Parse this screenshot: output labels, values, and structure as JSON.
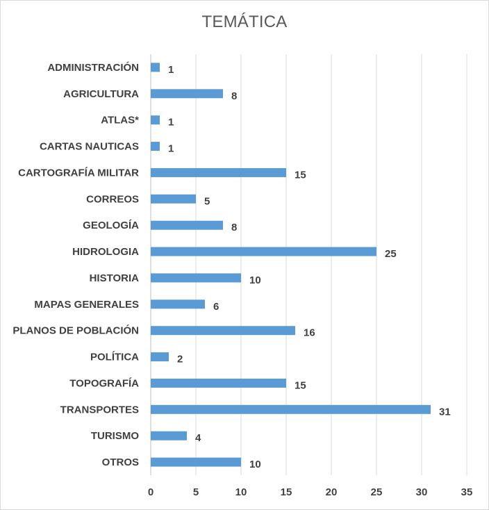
{
  "chart_data": {
    "type": "bar",
    "orientation": "horizontal",
    "title": "TEMÁTICA",
    "xlabel": "",
    "ylabel": "",
    "categories": [
      "ADMINISTRACIÓN",
      "AGRICULTURA",
      "ATLAS*",
      "CARTAS NAUTICAS",
      "CARTOGRAFÍA MILITAR",
      "CORREOS",
      "GEOLOGÍA",
      "HIDROLOGIA",
      "HISTORIA",
      "MAPAS GENERALES",
      "PLANOS DE POBLACIÓN",
      "POLÍTICA",
      "TOPOGRAFÍA",
      "TRANSPORTES",
      "TURISMO",
      "OTROS"
    ],
    "values": [
      1,
      8,
      1,
      1,
      15,
      5,
      8,
      25,
      10,
      6,
      16,
      2,
      15,
      31,
      4,
      10
    ],
    "xlim": [
      0,
      35
    ],
    "xticks": [
      0,
      5,
      10,
      15,
      20,
      25,
      30,
      35
    ],
    "grid": true,
    "legend": "none",
    "bar_color": "#5b9bd5",
    "data_labels": true
  }
}
